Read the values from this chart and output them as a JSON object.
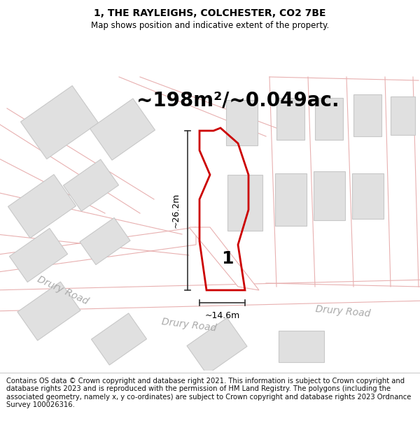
{
  "title": "1, THE RAYLEIGHS, COLCHESTER, CO2 7BE",
  "subtitle": "Map shows position and indicative extent of the property.",
  "area_text": "~198m²/~0.049ac.",
  "width_label": "~14.6m",
  "height_label": "~26.2m",
  "label_number": "1",
  "road_label_center": "Drury Road",
  "road_label_right": "Drury Road",
  "road_label_left": "Drury Road",
  "footer": "Contains OS data © Crown copyright and database right 2021. This information is subject to Crown copyright and database rights 2023 and is reproduced with the permission of HM Land Registry. The polygons (including the associated geometry, namely x, y co-ordinates) are subject to Crown copyright and database rights 2023 Ordnance Survey 100026316.",
  "map_bg": "#f7f7f7",
  "plot_fill": "none",
  "plot_edge": "#cc0000",
  "road_color": "#e8b0b0",
  "road_bg": "#ffffff",
  "building_fill": "#e0e0e0",
  "building_edge": "#c8c8c8",
  "title_fontsize": 10,
  "subtitle_fontsize": 8.5,
  "area_fontsize": 20,
  "footer_fontsize": 7.2,
  "label_fontsize": 18,
  "dim_fontsize": 9,
  "road_fontsize": 10
}
